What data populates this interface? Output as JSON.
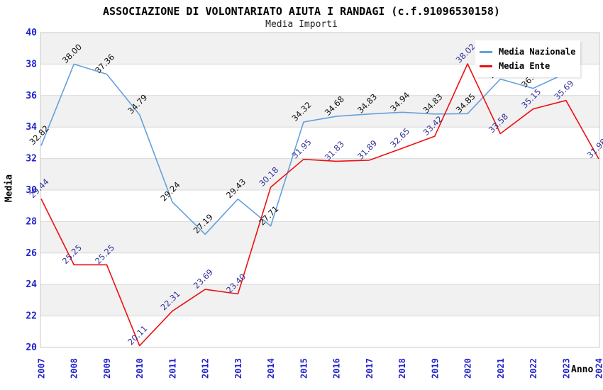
{
  "header": {
    "title": "ASSOCIAZIONE DI VOLONTARIATO AIUTA I RANDAGI (c.f.91096530158)",
    "subtitle": "Media Importi"
  },
  "legend": {
    "items": [
      {
        "label": "Media Nazionale",
        "color": "#64A0DC"
      },
      {
        "label": "Media Ente",
        "color": "#EE1010"
      }
    ]
  },
  "axes": {
    "y_label": "Media",
    "x_label": "Anno",
    "y_ticks": [
      40,
      38,
      36,
      34,
      32,
      30,
      28,
      26,
      24,
      22,
      20
    ],
    "tick_color": "#2222CC",
    "grid_color": "#D8D8D8",
    "band_color": "#F1F1F1",
    "border_color": "#C8C8C8"
  },
  "chart_data": {
    "type": "line",
    "title": "Media Importi",
    "xlabel": "Anno",
    "ylabel": "Media",
    "ylim": [
      20,
      40
    ],
    "grid": true,
    "legend_position": "top-right",
    "x": [
      "2007",
      "2008",
      "2009",
      "2010",
      "2011",
      "2012",
      "2013",
      "2014",
      "2015",
      "2016",
      "2017",
      "2018",
      "2019",
      "2020",
      "2021",
      "2022",
      "2023",
      "2024"
    ],
    "series": [
      {
        "name": "Media Nazionale",
        "color": "#64A0DC",
        "label_color": "#111111",
        "values": [
          32.82,
          38.0,
          37.36,
          34.79,
          29.24,
          27.19,
          29.43,
          27.71,
          34.32,
          34.68,
          34.83,
          34.94,
          34.83,
          34.85,
          37.05,
          36.46,
          37.43,
          null
        ],
        "labels": [
          "32.82",
          "38.00",
          "37.36",
          "34.79",
          "29.24",
          "27.19",
          "29.43",
          "27.71",
          "34.32",
          "34.68",
          "34.83",
          "34.94",
          "34.83",
          "34.85",
          "37.05",
          "36.46",
          "",
          ""
        ]
      },
      {
        "name": "Media Ente",
        "color": "#EE1010",
        "label_color": "#333399",
        "values": [
          29.44,
          25.25,
          25.25,
          20.11,
          22.31,
          23.69,
          23.4,
          30.18,
          31.95,
          31.83,
          31.89,
          32.65,
          33.42,
          38.02,
          33.58,
          35.15,
          35.69,
          31.98
        ],
        "labels": [
          "29.44",
          "25.25",
          "25.25",
          "20.11",
          "22.31",
          "23.69",
          "23.40",
          "30.18",
          "31.95",
          "31.83",
          "31.89",
          "32.65",
          "33.42",
          "38.02",
          "33.58",
          "35.15",
          "35.69",
          "31.98"
        ]
      }
    ]
  }
}
